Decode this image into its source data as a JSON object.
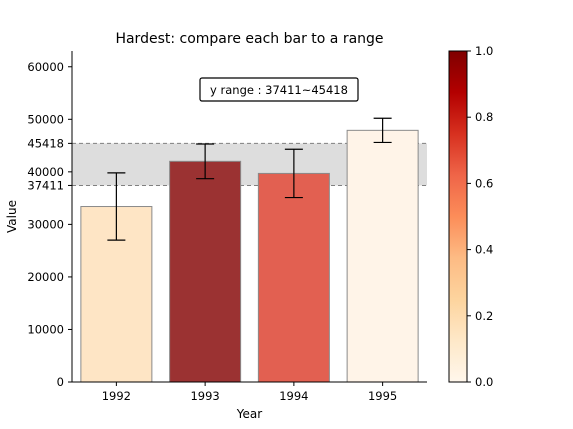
{
  "chart_data": {
    "type": "bar",
    "title": "Hardest: compare each bar to a range",
    "xlabel": "Year",
    "ylabel": "Value",
    "categories": [
      "1992",
      "1993",
      "1994",
      "1995"
    ],
    "values": [
      33400,
      42000,
      39700,
      47900
    ],
    "errors": [
      6400,
      3300,
      4600,
      2300
    ],
    "ylim": [
      0,
      63000
    ],
    "yticks": [
      "0",
      "10000",
      "20000",
      "30000",
      "40000",
      "50000",
      "60000"
    ],
    "range": {
      "low": 37411,
      "high": 45418,
      "low_label": "37411",
      "high_label": "45418"
    },
    "range_annotation": "y range : 37411~45418",
    "bar_colors": [
      "#fee5c5",
      "#9b3232",
      "#e26051",
      "#fff4e8"
    ],
    "colorbar": {
      "colormap": "OrRd",
      "min": 0,
      "max": 1,
      "ticks": [
        "0.0",
        "0.2",
        "0.4",
        "0.6",
        "0.8",
        "1.0"
      ],
      "stops": [
        "#fff7ec",
        "#fee8c8",
        "#fdd49e",
        "#fdbb84",
        "#fc8d59",
        "#ef6548",
        "#d7301f",
        "#b30000",
        "#7f0000"
      ]
    },
    "grid": false,
    "legend": "none"
  }
}
